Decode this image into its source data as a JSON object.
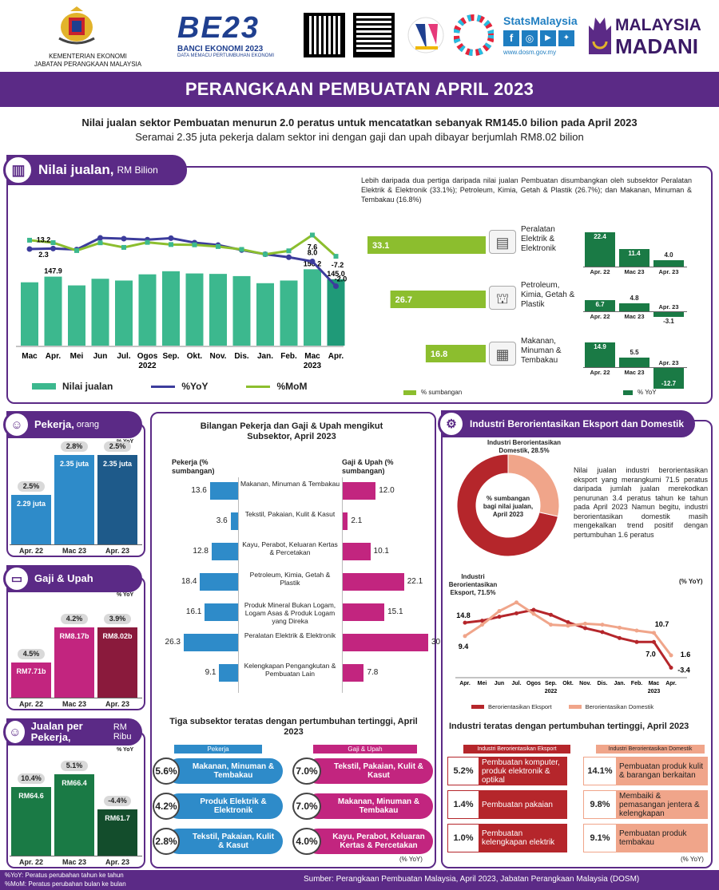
{
  "header": {
    "ministry_line1": "KEMENTERIAN EKONOMI",
    "ministry_line2": "JABATAN PERANGKAAN MALAYSIA",
    "banci_title": "BE23",
    "banci_sub1": "BANCI EKONOMI 2023",
    "banci_sub2": "DATA MEMACU PERTUMBUHAN EKONOMI",
    "stats_brand": "StatsMalaysia",
    "stats_url": "www.dosm.gov.my",
    "madani_1": "MALAYSIA",
    "madani_2": "MADANI"
  },
  "title": "PERANGKAAN PEMBUATAN APRIL 2023",
  "subtitle1": "Nilai jualan sektor Pembuatan menurun 2.0 peratus untuk mencatatkan sebanyak RM145.0 bilion pada April 2023",
  "subtitle2": "Seramai 2.35 juta pekerja dalam sektor ini dengan gaji dan upah dibayar berjumlah RM8.02 bilion",
  "sales": {
    "heading": "Nilai jualan,",
    "unit": "RM Bilion",
    "note": "Lebih daripada dua pertiga daripada nilai jualan Pembuatan disumbangkan oleh subsektor Peralatan Elektrik & Elektronik (33.1%); Petroleum, Kimia, Getah & Plastik (26.7%); dan Makanan, Minuman & Tembakau (16.8%)",
    "legend_sales": "Nilai jualan",
    "legend_yoy": "%YoY",
    "legend_mom": "%MoM",
    "year_2022": "2022",
    "year_2023": "2023",
    "legend_contrib": "% sumbangan",
    "legend_yoy2": "% YoY"
  },
  "chart_data": [
    {
      "type": "bar",
      "title": "Nilai jualan, RM Bilion",
      "categories": [
        "Mac",
        "Apr.",
        "Mei",
        "Jun",
        "Jul.",
        "Ogos",
        "Sep.",
        "Okt.",
        "Nov.",
        "Dis.",
        "Jan.",
        "Feb.",
        "Mac",
        "Apr."
      ],
      "series": [
        {
          "name": "Nilai jualan",
          "values": [
            141.5,
            147.9,
            138.0,
            145.5,
            143.5,
            150.5,
            154.0,
            151.5,
            151.0,
            148.5,
            140.5,
            143.5,
            156.2,
            145.0
          ]
        },
        {
          "name": "%YoY",
          "values": [
            13.0,
            13.2,
            12.8,
            17.5,
            17.2,
            16.8,
            17.4,
            15.6,
            14.6,
            12.6,
            10.9,
            9.7,
            8.0,
            -2.0
          ]
        },
        {
          "name": "%MoM",
          "values": [
            4.0,
            2.3,
            -3.2,
            2.2,
            -1.0,
            2.5,
            1.0,
            0.8,
            -0.4,
            -2.4,
            -5.8,
            -3.4,
            7.6,
            -7.2
          ]
        }
      ],
      "labels": [
        {
          "label": "147.9"
        },
        {
          "label": "156.2"
        },
        {
          "label": "145.0"
        },
        {
          "label": "13.2"
        },
        {
          "label": "2.3"
        },
        {
          "label": "8.0"
        },
        {
          "label": "7.6"
        },
        {
          "label": "-2.0"
        },
        {
          "label": "-7.2"
        }
      ]
    },
    {
      "type": "bar",
      "title": "% sumbangan",
      "categories": [
        "Peralatan Elektrik & Elektronik",
        "Petroleum, Kimia, Getah & Plastik",
        "Makanan, Minuman & Tembakau"
      ],
      "values": [
        33.1,
        26.7,
        16.8
      ]
    },
    {
      "type": "bar",
      "title": "% YoY",
      "categories": [
        "Apr. 22",
        "Mac 23",
        "Apr. 23"
      ],
      "series": [
        {
          "name": "Peralatan Elektrik & Elektronik",
          "values": [
            22.4,
            11.4,
            4.0
          ]
        },
        {
          "name": "Petroleum, Kimia, Getah & Plastik",
          "values": [
            6.7,
            4.8,
            -3.1
          ]
        },
        {
          "name": "Makanan, Minuman & Tembakau",
          "values": [
            14.9,
            5.5,
            -12.7
          ]
        }
      ]
    },
    {
      "type": "bar",
      "title": "Bilangan Pekerja dan Gaji & Upah mengikut Subsektor, April 2023",
      "categories": [
        "Makanan, Minuman & Tembakau",
        "Tekstil, Pakaian, Kulit & Kasut",
        "Kayu, Perabot, Keluaran Kertas & Percetakan",
        "Petroleum, Kimia, Getah & Plastik",
        "Produk Mineral Bukan Logam, Logam Asas & Produk Logam yang Direka",
        "Peralatan Elektrik & Elektronik",
        "Kelengkapan Pengangkutan & Pembuatan Lain"
      ],
      "series": [
        {
          "name": "Pekerja (% sumbangan)",
          "values": [
            13.6,
            3.6,
            12.8,
            18.4,
            16.1,
            26.3,
            9.1
          ]
        },
        {
          "name": "Gaji & Upah (% sumbangan)",
          "values": [
            12.0,
            2.1,
            10.1,
            22.1,
            15.1,
            30.7,
            7.8
          ]
        }
      ]
    },
    {
      "type": "pie",
      "title": "% sumbangan bagi nilai jualan, April 2023",
      "categories": [
        "Industri Berorientasikan Eksport",
        "Industri Berorientasikan Domestik"
      ],
      "values": [
        71.5,
        28.5
      ]
    },
    {
      "type": "line",
      "title": "(% YoY)",
      "categories": [
        "Apr.",
        "Mei",
        "Jun",
        "Jul.",
        "Ogos",
        "Sep.",
        "Okt.",
        "Nov.",
        "Dis.",
        "Jan.",
        "Feb.",
        "Mac",
        "Apr."
      ],
      "series": [
        {
          "name": "Berorientasikan Eksport",
          "values": [
            14.8,
            15.6,
            17.2,
            18.6,
            20.0,
            18.0,
            15.0,
            12.6,
            11.0,
            8.6,
            7.0,
            7.0,
            -3.4
          ]
        },
        {
          "name": "Berorientasikan Domestik",
          "values": [
            9.4,
            14.0,
            19.5,
            23.0,
            18.4,
            14.0,
            13.6,
            14.4,
            14.0,
            12.8,
            11.6,
            10.7,
            1.6
          ]
        }
      ],
      "year_2022": "2022",
      "year_2023": "2023"
    }
  ],
  "sectors": [
    {
      "name": "Peralatan Elektrik & Elektronik",
      "contrib": "33.1",
      "v1": "22.4",
      "v2": "11.4",
      "v3": "4.0"
    },
    {
      "name": "Petroleum, Kimia, Getah & Plastik",
      "contrib": "26.7",
      "v1": "6.7",
      "v2": "4.8",
      "v3": "-3.1"
    },
    {
      "name": "Makanan, Minuman & Tembakau",
      "contrib": "16.8",
      "v1": "14.9",
      "v2": "5.5",
      "v3": "-12.7"
    }
  ],
  "period_labels": [
    "Apr. 22",
    "Mac 23",
    "Apr. 23"
  ],
  "pekerja": {
    "heading": "Pekerja,",
    "unit": "orang",
    "yoy": "% YoY",
    "values": [
      "2.29 juta",
      "2.35 juta",
      "2.35 juta"
    ],
    "pct": [
      "2.5%",
      "2.8%",
      "2.5%"
    ],
    "raw": [
      2.29,
      2.35,
      2.35
    ]
  },
  "gaji": {
    "heading": "Gaji & Upah",
    "yoy": "% YoY",
    "values": [
      "RM7.71b",
      "RM8.17b",
      "RM8.02b"
    ],
    "pct": [
      "4.5%",
      "4.2%",
      "3.9%"
    ],
    "raw": [
      7.71,
      8.17,
      8.02
    ]
  },
  "jualan_pekerja": {
    "heading": "Jualan per Pekerja,",
    "unit": "RM Ribu",
    "yoy": "% YoY",
    "values": [
      "RM64.6",
      "RM66.4",
      "RM61.7"
    ],
    "pct": [
      "10.4%",
      "5.1%",
      "-4.4%"
    ],
    "raw": [
      64.6,
      66.4,
      61.7
    ]
  },
  "middle": {
    "title": "Bilangan Pekerja dan Gaji & Upah mengikut Subsektor, April 2023",
    "left_head": "Pekerja (% sumbangan)",
    "right_head": "Gaji & Upah (% sumbangan)",
    "rows": [
      {
        "label": "Makanan, Minuman & Tembakau",
        "l": "13.6",
        "r": "12.0",
        "lv": 13.6,
        "rv": 12.0
      },
      {
        "label": "Tekstil, Pakaian, Kulit & Kasut",
        "l": "3.6",
        "r": "2.1",
        "lv": 3.6,
        "rv": 2.1
      },
      {
        "label": "Kayu, Perabot, Keluaran Kertas & Percetakan",
        "l": "12.8",
        "r": "10.1",
        "lv": 12.8,
        "rv": 10.1
      },
      {
        "label": "Petroleum, Kimia, Getah & Plastik",
        "l": "18.4",
        "r": "22.1",
        "lv": 18.4,
        "rv": 22.1
      },
      {
        "label": "Produk Mineral Bukan Logam, Logam Asas & Produk Logam yang Direka",
        "l": "16.1",
        "r": "15.1",
        "lv": 16.1,
        "rv": 15.1
      },
      {
        "label": "Peralatan Elektrik & Elektronik",
        "l": "26.3",
        "r": "30.7",
        "lv": 26.3,
        "rv": 30.7
      },
      {
        "label": "Kelengkapan Pengangkutan & Pembuatan Lain",
        "l": "9.1",
        "r": "7.8",
        "lv": 9.1,
        "rv": 7.8
      }
    ],
    "top_title": "Tiga subsektor teratas dengan pertumbuhan tertinggi, April 2023",
    "top_left_head": "Pekerja",
    "top_right_head": "Gaji & Upah",
    "top_left": [
      {
        "pct": "5.6%",
        "label": "Makanan, Minuman & Tembakau"
      },
      {
        "pct": "4.2%",
        "label": "Produk Elektrik & Elektronik"
      },
      {
        "pct": "2.8%",
        "label": "Tekstil, Pakaian, Kulit & Kasut"
      }
    ],
    "top_right": [
      {
        "pct": "7.0%",
        "label": "Tekstil, Pakaian, Kulit & Kasut"
      },
      {
        "pct": "7.0%",
        "label": "Makanan, Minuman & Tembakau"
      },
      {
        "pct": "4.0%",
        "label": "Kayu, Perabot, Keluaran Kertas & Percetakan"
      }
    ],
    "top_note": "(% YoY)"
  },
  "export": {
    "heading": "Industri Berorientasikan Eksport dan Domestik",
    "dom_label": "Industri Berorientasikan Domestik, 28.5%",
    "exp_label": "Industri Berorientasikan Eksport, 71.5%",
    "center": "% sumbangan bagi nilai jualan, April 2023",
    "text": "Nilai jualan industri berorientasikan eksport yang merangkumi 71.5 peratus daripada jumlah jualan merekodkan penurunan 3.4 peratus tahun ke tahun pada April 2023 Namun begitu, industri berorientasikan domestik masih mengekalkan trend positif dengan pertumbuhan 1.6 peratus",
    "yoy_label": "(% YoY)",
    "legend_exp": "Berorientasikan Eksport",
    "legend_dom": "Berorientasikan Domestik",
    "top_title": "Industri teratas dengan pertumbuhan tertinggi, April 2023",
    "exp_head": "Industri Berorientasikan Eksport",
    "dom_head": "Industri Berorientasikan Domestik",
    "exp_rows": [
      {
        "pct": "5.2%",
        "label": "Pembuatan komputer, produk elektronik & optikal"
      },
      {
        "pct": "1.4%",
        "label": "Pembuatan pakaian"
      },
      {
        "pct": "1.0%",
        "label": "Pembuatan kelengkapan elektrik"
      }
    ],
    "dom_rows": [
      {
        "pct": "14.1%",
        "label": "Pembuatan produk kulit & barangan berkaitan"
      },
      {
        "pct": "9.8%",
        "label": "Membaiki & pemasangan jentera & kelengkapan"
      },
      {
        "pct": "9.1%",
        "label": "Pembuatan produk tembakau"
      }
    ],
    "note": "(% YoY)"
  },
  "footer": {
    "yoy_note": "%YoY: Peratus perubahan tahun ke tahun",
    "mom_note": "%MoM: Peratus perubahan bulan ke bulan",
    "source": "Sumber: Perangkaan Pembuatan Malaysia, April 2023, Jabatan Perangkaan Malaysia (DOSM)"
  },
  "colors": {
    "purple": "#5b2a86",
    "green": "#3cb88e",
    "dark_green": "#1a7a45",
    "olive": "#8cbe2e",
    "blue": "#2e8bc9",
    "navy": "#1e5a8a",
    "magenta": "#c2257f",
    "maroon": "#8a1a3c",
    "red": "#b5262b",
    "peach": "#f0a58a"
  }
}
